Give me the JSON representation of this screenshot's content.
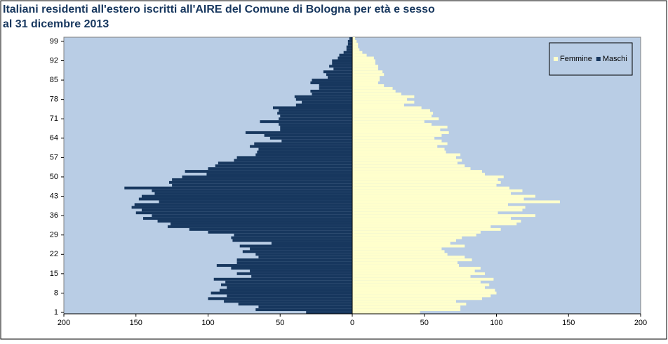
{
  "chart_data": {
    "type": "pyramid",
    "title": [
      "Italiani residenti all'estero iscritti all'AIRE del Comune di Bologna per età e sesso",
      "al 31 dicembre 2013"
    ],
    "categories": [
      "1",
      null,
      null,
      null,
      null,
      null,
      null,
      "8",
      null,
      null,
      null,
      null,
      null,
      null,
      "15",
      null,
      null,
      null,
      null,
      null,
      null,
      "22",
      null,
      null,
      null,
      null,
      null,
      null,
      "29",
      null,
      null,
      null,
      null,
      null,
      null,
      "36",
      null,
      null,
      null,
      null,
      null,
      null,
      "43",
      null,
      null,
      null,
      null,
      null,
      null,
      "50",
      null,
      null,
      null,
      null,
      null,
      null,
      "57",
      null,
      null,
      null,
      null,
      null,
      null,
      "64",
      null,
      null,
      null,
      null,
      null,
      null,
      "71",
      null,
      null,
      null,
      null,
      null,
      null,
      "78",
      null,
      null,
      null,
      null,
      null,
      null,
      "85",
      null,
      null,
      null,
      null,
      null,
      null,
      "92",
      null,
      null,
      null,
      null,
      null,
      null,
      "99",
      null
    ],
    "series": [
      {
        "name": "Femmine",
        "color": "#ffffcc",
        "values": [
          47,
          75,
          75,
          79,
          72,
          90,
          96,
          100,
          99,
          92,
          95,
          89,
          98,
          82,
          92,
          85,
          89,
          74,
          73,
          83,
          78,
          66,
          64,
          62,
          78,
          68,
          72,
          76,
          86,
          89,
          103,
          96,
          114,
          117,
          110,
          127,
          101,
          118,
          120,
          108,
          144,
          119,
          127,
          110,
          118,
          109,
          100,
          103,
          101,
          105,
          92,
          90,
          82,
          78,
          73,
          76,
          72,
          75,
          65,
          64,
          59,
          66,
          62,
          57,
          62,
          67,
          61,
          66,
          55,
          50,
          60,
          55,
          56,
          54,
          48,
          36,
          43,
          38,
          43,
          34,
          30,
          28,
          22,
          18,
          19,
          19,
          22,
          21,
          18,
          18,
          16,
          16,
          15,
          10,
          7,
          5,
          4,
          4,
          3,
          2
        ]
      },
      {
        "name": "Maschi",
        "color": "#17375e",
        "values": [
          -32,
          -67,
          -65,
          -79,
          -89,
          -100,
          -87,
          -98,
          -92,
          -87,
          -91,
          -88,
          -96,
          -70,
          -80,
          -71,
          -84,
          -94,
          -80,
          -80,
          -65,
          -67,
          -76,
          -71,
          -78,
          -56,
          -83,
          -84,
          -82,
          -100,
          -113,
          -128,
          -126,
          -135,
          -145,
          -139,
          -150,
          -146,
          -153,
          -151,
          -134,
          -148,
          -146,
          -137,
          -139,
          -158,
          -125,
          -127,
          -125,
          -118,
          -101,
          -116,
          -100,
          -95,
          -93,
          -82,
          -80,
          -67,
          -66,
          -65,
          -71,
          -68,
          -49,
          -57,
          -61,
          -74,
          -50,
          -50,
          -51,
          -64,
          -51,
          -50,
          -52,
          -51,
          -55,
          -39,
          -35,
          -39,
          -40,
          -28,
          -29,
          -23,
          -23,
          -29,
          -28,
          -17,
          -18,
          -20,
          -13,
          -16,
          -14,
          -14,
          -10,
          -9,
          -6,
          -4,
          -4,
          -3,
          -3,
          -2
        ]
      }
    ],
    "xlim": [
      -200,
      200
    ],
    "xticks": [
      {
        "value": -200,
        "label": "200"
      },
      {
        "value": -150,
        "label": "150"
      },
      {
        "value": -100,
        "label": "100"
      },
      {
        "value": -50,
        "label": "50"
      },
      0,
      50,
      100,
      150,
      200
    ],
    "legend": "top-right",
    "plot_background": "#b9cde5"
  }
}
